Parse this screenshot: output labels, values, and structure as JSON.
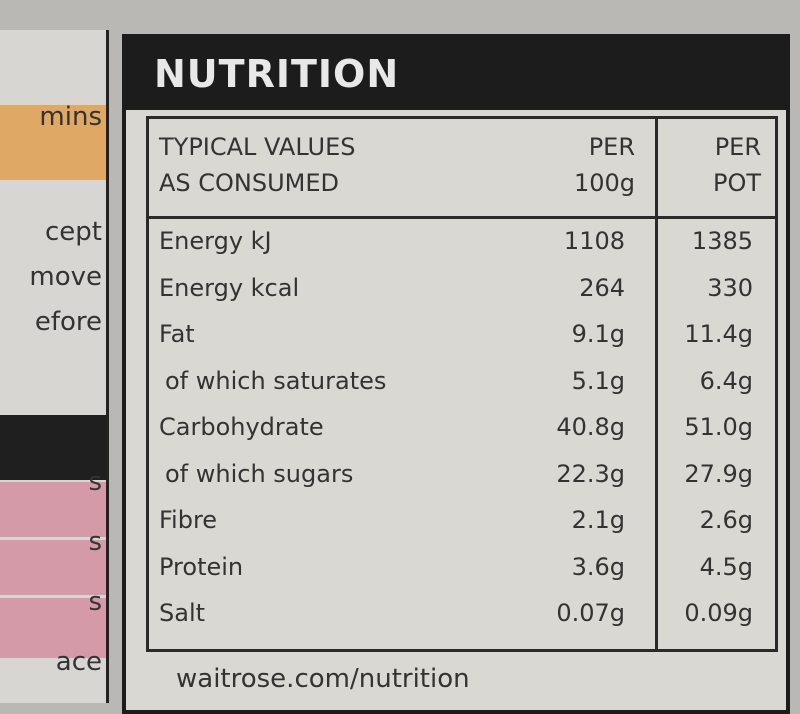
{
  "left_panel": [
    "mins",
    "cept",
    "move",
    "efore",
    "s",
    "s",
    "s",
    "ace"
  ],
  "title": "NUTRITION",
  "table": {
    "header": [
      [
        "TYPICAL VALUES",
        "AS CONSUMED"
      ],
      [
        "PER",
        "100g"
      ],
      [
        "PER",
        "POT"
      ]
    ],
    "rows": [
      [
        "Energy kJ",
        "1108",
        "1385"
      ],
      [
        "Energy kcal",
        "264",
        "330"
      ],
      [
        "Fat",
        "9.1g",
        "11.4g"
      ],
      [
        "of which saturates",
        "5.1g",
        "6.4g"
      ],
      [
        "Carbohydrate",
        "40.8g",
        "51.0g"
      ],
      [
        "of which sugars",
        "22.3g",
        "27.9g"
      ],
      [
        "Fibre",
        "2.1g",
        "2.6g"
      ],
      [
        "Protein",
        "3.6g",
        "4.5g"
      ],
      [
        "Salt",
        "0.07g",
        "0.09g"
      ]
    ]
  },
  "footer": "waitrose.com/nutrition"
}
